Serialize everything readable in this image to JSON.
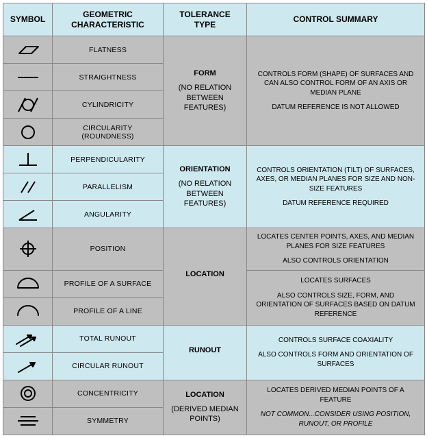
{
  "colors": {
    "header_bg": "#cde8ef",
    "group_gray": "#bfbfbf",
    "group_blue": "#cde8ef",
    "border": "#888888",
    "text": "#000000",
    "stroke": "#000000"
  },
  "columns": {
    "symbol": "SYMBOL",
    "characteristic": "GEOMETRIC CHARACTERISTIC",
    "tolerance": "TOLERANCE TYPE",
    "summary": "CONTROL SUMMARY"
  },
  "groups": [
    {
      "bg": "group_gray",
      "tolerance": {
        "main": "FORM",
        "sub": "(NO RELATION BETWEEN FEATURES)"
      },
      "summary": [
        "CONTROLS FORM (SHAPE) OF SURFACES AND CAN ALSO CONTROL FORM OF AN AXIS OR MEDIAN PLANE",
        "",
        "DATUM REFERENCE IS NOT ALLOWED"
      ],
      "summary_rowspan": 4,
      "rows": [
        {
          "icon": "flatness",
          "label": "FLATNESS"
        },
        {
          "icon": "straightness",
          "label": "STRAIGHTNESS"
        },
        {
          "icon": "cylindricity",
          "label": "CYLINDRICITY"
        },
        {
          "icon": "circularity",
          "label": "CIRCULARITY (ROUNDNESS)"
        }
      ]
    },
    {
      "bg": "group_blue",
      "tolerance": {
        "main": "ORIENTATION",
        "sub": "(NO RELATION BETWEEN FEATURES)"
      },
      "summary": [
        "CONTROLS ORIENTATION (TILT) OF SURFACES, AXES, OR MEDIAN PLANES FOR SIZE AND NON-SIZE FEATURES",
        "",
        "DATUM REFERENCE REQUIRED"
      ],
      "summary_rowspan": 3,
      "rows": [
        {
          "icon": "perpendicularity",
          "label": "PERPENDICULARITY"
        },
        {
          "icon": "parallelism",
          "label": "PARALLELISM"
        },
        {
          "icon": "angularity",
          "label": "ANGULARITY"
        }
      ]
    },
    {
      "bg": "group_gray",
      "tolerance": {
        "main": "LOCATION",
        "sub": ""
      },
      "summaries": [
        {
          "rowspan": 1,
          "lines": [
            "LOCATES CENTER POINTS, AXES, AND MEDIAN PLANES FOR SIZE FEATURES",
            "",
            "ALSO CONTROLS ORIENTATION"
          ]
        },
        {
          "rowspan": 2,
          "lines": [
            "LOCATES SURFACES",
            "",
            "ALSO CONTROLS SIZE, FORM, AND ORIENTATION OF SURFACES BASED ON DATUM REFERENCE"
          ]
        }
      ],
      "rows": [
        {
          "icon": "position",
          "label": "POSITION"
        },
        {
          "icon": "profile_surface",
          "label": "PROFILE OF A SURFACE"
        },
        {
          "icon": "profile_line",
          "label": "PROFILE OF A LINE"
        }
      ]
    },
    {
      "bg": "group_blue",
      "tolerance": {
        "main": "RUNOUT",
        "sub": ""
      },
      "summary": [
        "CONTROLS SURFACE COAXIALITY",
        "",
        "ALSO CONTROLS FORM AND ORIENTATION OF SURFACES"
      ],
      "summary_rowspan": 2,
      "rows": [
        {
          "icon": "total_runout",
          "label": "TOTAL RUNOUT"
        },
        {
          "icon": "circular_runout",
          "label": "CIRCULAR RUNOUT"
        }
      ]
    },
    {
      "bg": "group_gray",
      "tolerance": {
        "main": "LOCATION",
        "sub": "(DERIVED MEDIAN POINTS)"
      },
      "summary": [
        "LOCATES DERIVED MEDIAN POINTS OF A FEATURE",
        "",
        "NOT COMMON...CONSIDER USING POSITION, RUNOUT, OR PROFILE"
      ],
      "summary_italic_last": true,
      "summary_rowspan": 2,
      "rows": [
        {
          "icon": "concentricity",
          "label": "CONCENTRICITY"
        },
        {
          "icon": "symmetry",
          "label": "SYMMETRY"
        }
      ]
    }
  ],
  "svg": {
    "w": 46,
    "h": 28,
    "stroke_width": 2
  }
}
